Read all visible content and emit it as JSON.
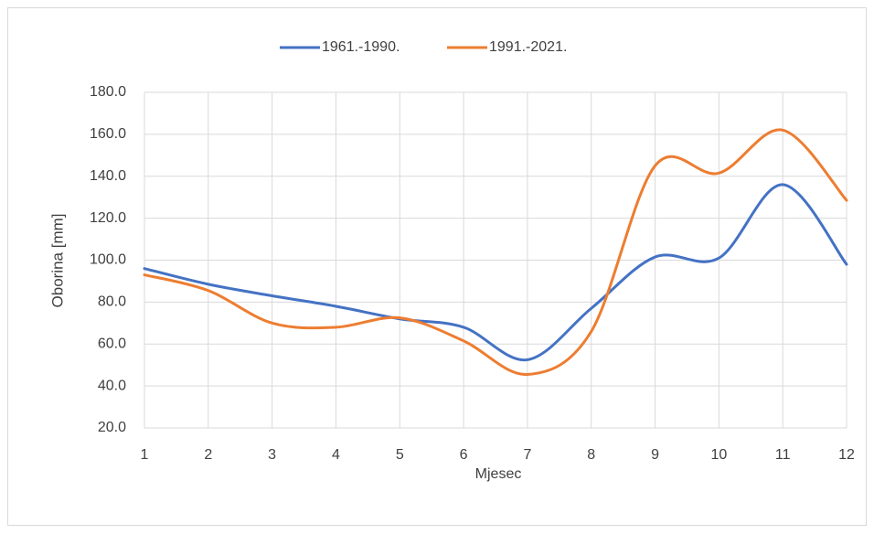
{
  "chart_data": {
    "type": "line",
    "x": [
      1,
      2,
      3,
      4,
      5,
      6,
      7,
      8,
      9,
      10,
      11,
      12
    ],
    "series": [
      {
        "name": "1961.-1990.",
        "color": "#4472c4",
        "values": [
          96,
          88.5,
          83,
          78,
          72,
          68,
          52.5,
          77,
          101.5,
          101,
          136,
          98
        ]
      },
      {
        "name": "1991.-2021.",
        "color": "#ed7d31",
        "values": [
          93,
          85.5,
          70,
          68,
          72.5,
          61.5,
          45.5,
          66,
          145,
          141.5,
          162,
          128.5
        ]
      }
    ],
    "xlabel": "Mjesec",
    "ylabel": "Oborina [mm]",
    "xlim": [
      1,
      12
    ],
    "xticks": [
      1,
      2,
      3,
      4,
      5,
      6,
      7,
      8,
      9,
      10,
      11,
      12
    ],
    "ylim": [
      20,
      180
    ],
    "yticks": [
      {
        "value": 20,
        "label": "20.0"
      },
      {
        "value": 40,
        "label": "40.0"
      },
      {
        "value": 60,
        "label": "60.0"
      },
      {
        "value": 80,
        "label": "80.0"
      },
      {
        "value": 100,
        "label": "100.0"
      },
      {
        "value": 120,
        "label": "120.0"
      },
      {
        "value": 140,
        "label": "140.0"
      },
      {
        "value": 160,
        "label": "160.0"
      },
      {
        "value": 180,
        "label": "180.0"
      }
    ],
    "grid": true,
    "smooth": true,
    "legend": "top"
  }
}
